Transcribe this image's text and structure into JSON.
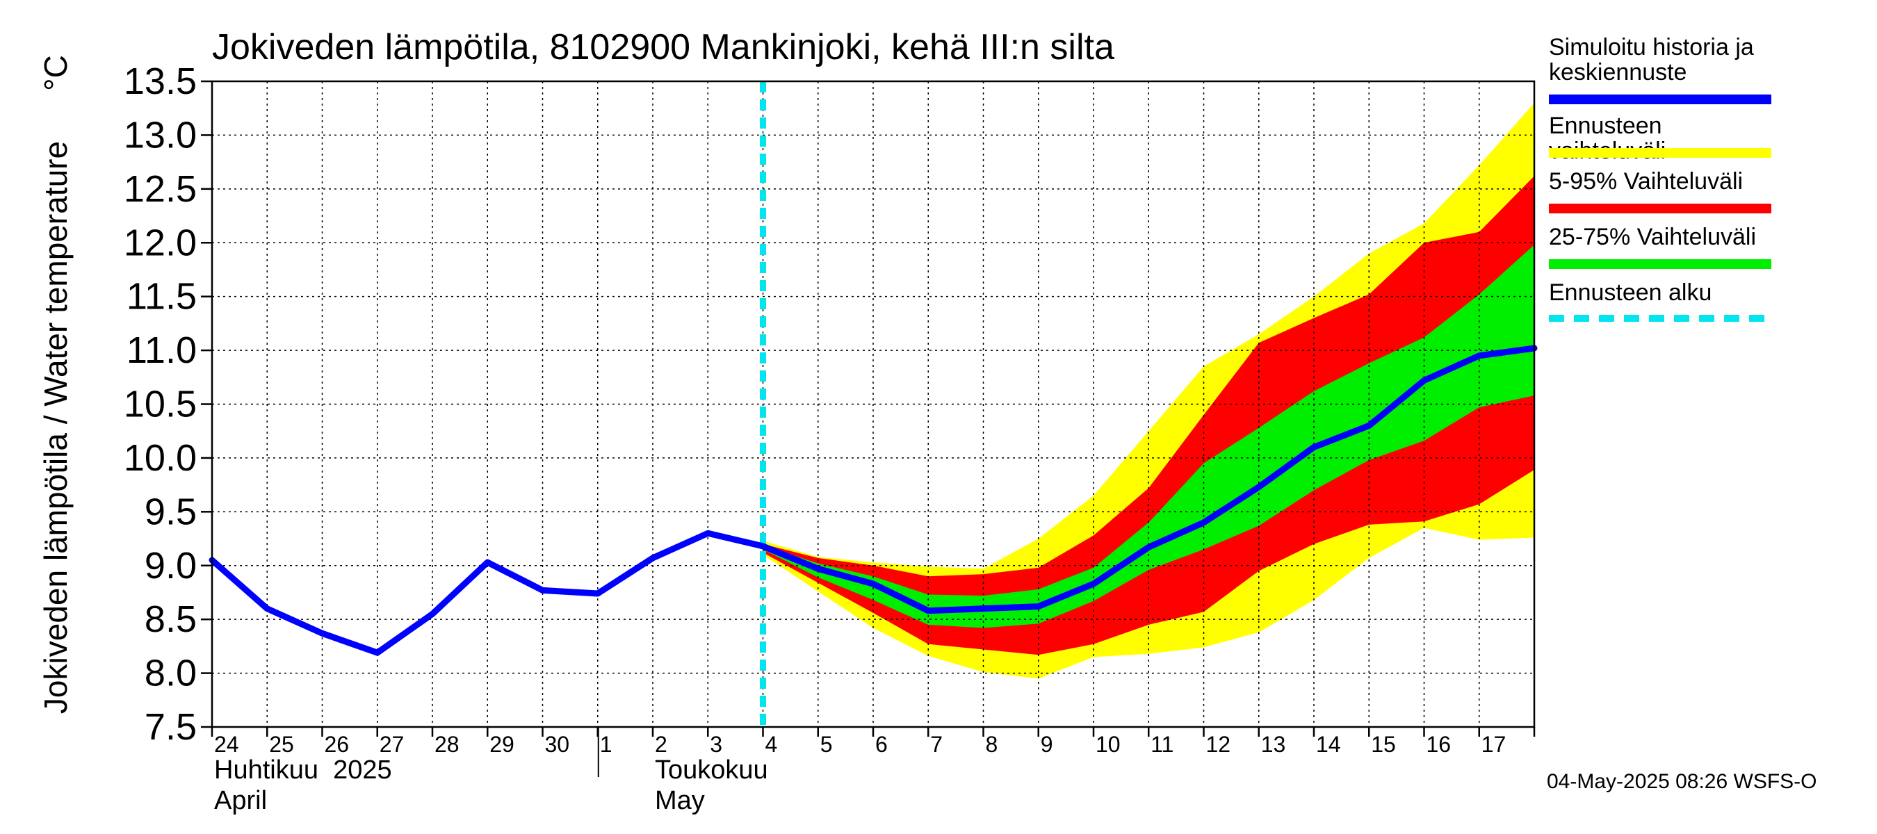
{
  "chart_data": {
    "type": "area",
    "title": "Jokiveden lämpötila, 8102900 Mankinjoki, kehä III:n silta",
    "ylabel": "Jokiveden lämpötila / Water temperature",
    "yunit": "°C",
    "ylim": [
      7.5,
      13.5
    ],
    "yticks": [
      7.5,
      8.0,
      8.5,
      9.0,
      9.5,
      10.0,
      10.5,
      11.0,
      11.5,
      12.0,
      12.5,
      13.0,
      13.5
    ],
    "xlim": [
      0,
      24
    ],
    "xtick_labels": [
      "24",
      "25",
      "26",
      "27",
      "28",
      "29",
      "30",
      "1",
      "2",
      "3",
      "4",
      "5",
      "6",
      "7",
      "8",
      "9",
      "10",
      "11",
      "12",
      "13",
      "14",
      "15",
      "16",
      "17"
    ],
    "month_labels": [
      {
        "fi": "Huhtikuu  2025",
        "en": "April",
        "x": 0
      },
      {
        "fi": "Toukokuu",
        "en": "May",
        "x": 8
      }
    ],
    "month_divider_x": 7,
    "forecast_start_x": 10,
    "series": [
      {
        "name": "Simuloitu historia ja keskiennuste",
        "color": "#0000ff",
        "x": [
          0,
          1,
          2,
          3,
          4,
          5,
          6,
          7,
          8,
          9,
          10,
          11,
          12,
          13,
          14,
          15,
          16,
          17,
          18,
          19,
          20,
          21,
          22,
          23,
          24
        ],
        "values": [
          9.05,
          8.6,
          8.37,
          8.19,
          8.55,
          9.03,
          8.77,
          8.74,
          9.07,
          9.3,
          9.18,
          8.97,
          8.83,
          8.58,
          8.6,
          8.62,
          8.83,
          9.17,
          9.4,
          9.73,
          10.1,
          10.3,
          10.72,
          10.95,
          11.02
        ]
      },
      {
        "name": "Ennusteen vaihteluväli",
        "color": "#ffff00",
        "x": [
          10,
          11,
          12,
          13,
          14,
          15,
          16,
          17,
          18,
          19,
          20,
          21,
          22,
          23,
          24
        ],
        "upper": [
          9.23,
          9.08,
          9.03,
          8.99,
          8.97,
          9.25,
          9.65,
          10.25,
          10.85,
          11.15,
          11.5,
          11.9,
          12.18,
          12.72,
          13.3
        ],
        "lower": [
          9.1,
          8.76,
          8.42,
          8.16,
          8.01,
          7.95,
          8.15,
          8.18,
          8.24,
          8.38,
          8.68,
          9.07,
          9.35,
          9.24,
          9.26
        ]
      },
      {
        "name": "5-95% Vaihteluväli",
        "color": "#ff0000",
        "x": [
          10,
          11,
          12,
          13,
          14,
          15,
          16,
          17,
          18,
          19,
          20,
          21,
          22,
          23,
          24
        ],
        "upper": [
          9.2,
          9.07,
          9.0,
          8.9,
          8.92,
          8.98,
          9.28,
          9.72,
          10.4,
          11.07,
          11.3,
          11.52,
          12.0,
          12.1,
          12.62
        ],
        "lower": [
          9.12,
          8.84,
          8.56,
          8.27,
          8.22,
          8.17,
          8.27,
          8.45,
          8.57,
          8.95,
          9.2,
          9.38,
          9.41,
          9.57,
          9.89
        ]
      },
      {
        "name": "25-75% Vaihteluväli",
        "color": "#00ee00",
        "x": [
          10,
          11,
          12,
          13,
          14,
          15,
          16,
          17,
          18,
          19,
          20,
          21,
          22,
          23,
          24
        ],
        "upper": [
          9.19,
          9.02,
          8.9,
          8.73,
          8.72,
          8.78,
          8.98,
          9.4,
          9.95,
          10.28,
          10.62,
          10.88,
          11.12,
          11.52,
          11.98
        ],
        "lower": [
          9.15,
          8.89,
          8.68,
          8.45,
          8.42,
          8.46,
          8.67,
          8.96,
          9.15,
          9.37,
          9.7,
          9.98,
          10.16,
          10.47,
          10.58
        ]
      }
    ],
    "forecast_line": {
      "name": "Ennusteen alku",
      "color": "#00e5ee"
    }
  },
  "legend": {
    "items": [
      {
        "label_lines": [
          "Simuloitu historia ja",
          "keskiennuste"
        ],
        "color": "#0000ff",
        "dashed": false
      },
      {
        "label_lines": [
          "Ennusteen vaihteluväli"
        ],
        "color": "#ffff00",
        "dashed": false
      },
      {
        "label_lines": [
          "5-95% Vaihteluväli"
        ],
        "color": "#ff0000",
        "dashed": false
      },
      {
        "label_lines": [
          "25-75% Vaihteluväli"
        ],
        "color": "#00ee00",
        "dashed": false
      },
      {
        "label_lines": [
          "Ennusteen alku"
        ],
        "color": "#00e5ee",
        "dashed": true
      }
    ]
  },
  "footer": "04-May-2025 08:26 WSFS-O"
}
